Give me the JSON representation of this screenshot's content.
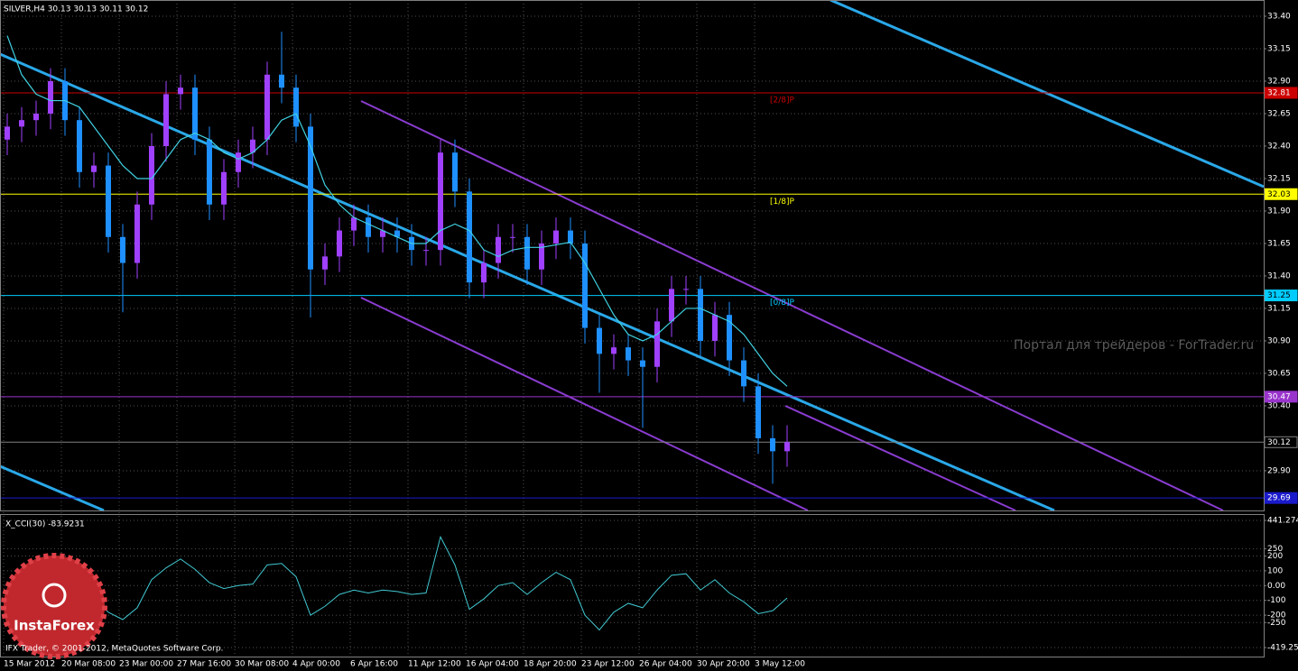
{
  "chart_data": [
    {
      "type": "candlestick",
      "title": "SILVER,H4 30.13 30.13 30.11 30.12",
      "up_color": "#a040ff",
      "down_color": "#1e90ff",
      "grid": true,
      "ylim": [
        29.594,
        33.525
      ],
      "yticks": [
        {
          "value": 33.4,
          "label": "33.40"
        },
        {
          "value": 33.15,
          "label": "33.15"
        },
        {
          "value": 32.9,
          "label": "32.90"
        },
        {
          "value": 32.65,
          "label": "32.65"
        },
        {
          "value": 32.4,
          "label": "32.40"
        },
        {
          "value": 32.15,
          "label": "32.15"
        },
        {
          "value": 31.9,
          "label": "31.90"
        },
        {
          "value": 31.65,
          "label": "31.65"
        },
        {
          "value": 31.4,
          "label": "31.40"
        },
        {
          "value": 31.15,
          "label": "31.15"
        },
        {
          "value": 30.9,
          "label": "30.90"
        },
        {
          "value": 30.65,
          "label": "30.65"
        },
        {
          "value": 30.4,
          "label": "30.40"
        },
        {
          "value": 29.9,
          "label": "29.90"
        }
      ],
      "xlabels": [
        "15 Mar 2012",
        "20 Mar 08:00",
        "23 Mar 00:00",
        "27 Mar 16:00",
        "30 Mar 08:00",
        "4 Apr 00:00",
        "6 Apr 16:00",
        "11 Apr 12:00",
        "16 Apr 04:00",
        "18 Apr 20:00",
        "23 Apr 12:00",
        "26 Apr 04:00",
        "30 Apr 20:00",
        "3 May 12:00"
      ],
      "candles": {
        "open": [
          32.45,
          32.55,
          32.6,
          32.65,
          32.9,
          32.6,
          32.2,
          32.25,
          31.7,
          31.5,
          31.95,
          32.4,
          32.8,
          32.85,
          32.45,
          31.95,
          32.2,
          32.35,
          32.45,
          32.95,
          32.85,
          32.55,
          31.45,
          31.55,
          31.75,
          31.85,
          31.7,
          31.75,
          31.7,
          31.6,
          31.6,
          32.35,
          32.05,
          31.35,
          31.5,
          31.7,
          31.7,
          31.45,
          31.65,
          31.75,
          31.65,
          31.0,
          30.8,
          30.85,
          30.75,
          30.7,
          31.05,
          31.3,
          31.3,
          30.9,
          31.1,
          30.75,
          30.55,
          30.15,
          30.05
        ],
        "high": [
          32.65,
          32.7,
          32.75,
          33.0,
          33.0,
          32.7,
          32.35,
          32.35,
          31.8,
          32.05,
          32.5,
          32.9,
          32.95,
          32.95,
          32.55,
          32.3,
          32.45,
          32.55,
          33.05,
          33.28,
          32.95,
          32.65,
          31.65,
          31.85,
          31.95,
          31.95,
          31.85,
          31.85,
          31.8,
          31.7,
          32.45,
          32.45,
          32.15,
          31.6,
          31.8,
          31.8,
          31.8,
          31.75,
          31.85,
          31.85,
          31.75,
          31.1,
          30.95,
          30.95,
          30.85,
          31.15,
          31.4,
          31.4,
          31.4,
          31.2,
          31.2,
          30.85,
          30.65,
          30.25,
          30.25
        ],
        "low": [
          32.33,
          32.43,
          32.48,
          32.53,
          32.48,
          32.08,
          32.08,
          31.58,
          31.12,
          31.38,
          31.83,
          32.28,
          32.68,
          32.33,
          31.83,
          31.83,
          32.08,
          32.23,
          32.33,
          32.73,
          32.43,
          31.08,
          31.33,
          31.43,
          31.63,
          31.58,
          31.58,
          31.58,
          31.48,
          31.48,
          31.48,
          31.93,
          31.23,
          31.23,
          31.38,
          31.58,
          31.33,
          31.33,
          31.53,
          31.53,
          30.88,
          30.5,
          30.68,
          30.63,
          30.23,
          30.58,
          30.93,
          31.18,
          30.78,
          30.78,
          30.63,
          30.43,
          30.03,
          29.8,
          29.93
        ],
        "close": [
          32.55,
          32.6,
          32.65,
          32.9,
          32.6,
          32.2,
          32.25,
          31.7,
          31.5,
          31.95,
          32.4,
          32.8,
          32.85,
          32.45,
          31.95,
          32.2,
          32.35,
          32.45,
          32.95,
          32.85,
          32.55,
          31.45,
          31.55,
          31.75,
          31.85,
          31.7,
          31.75,
          31.7,
          31.6,
          31.6,
          32.35,
          32.05,
          31.35,
          31.5,
          31.7,
          31.7,
          31.45,
          31.65,
          31.75,
          31.65,
          31.0,
          30.8,
          30.85,
          30.75,
          30.7,
          31.05,
          31.3,
          31.3,
          30.9,
          31.1,
          30.75,
          30.55,
          30.15,
          30.05,
          30.12
        ]
      },
      "ma": {
        "color": "#40d0e0",
        "values": [
          33.25,
          32.95,
          32.8,
          32.75,
          32.75,
          32.7,
          32.55,
          32.4,
          32.25,
          32.15,
          32.15,
          32.3,
          32.45,
          32.5,
          32.45,
          32.35,
          32.3,
          32.35,
          32.45,
          32.6,
          32.65,
          32.4,
          32.1,
          31.95,
          31.85,
          31.8,
          31.75,
          31.7,
          31.65,
          31.65,
          31.75,
          31.8,
          31.75,
          31.6,
          31.55,
          31.6,
          31.62,
          31.62,
          31.64,
          31.66,
          31.5,
          31.3,
          31.1,
          30.95,
          30.9,
          30.95,
          31.05,
          31.15,
          31.15,
          31.1,
          31.05,
          30.95,
          30.8,
          30.65,
          30.55
        ]
      },
      "levels": [
        {
          "value": 32.81,
          "color": "#cc0000",
          "text_color": "#ffffff",
          "tag": "[2/8]P"
        },
        {
          "value": 32.03,
          "color": "#ffff00",
          "text_color": "#000000",
          "tag": "[1/8]P"
        },
        {
          "value": 31.25,
          "color": "#00ccff",
          "text_color": "#000000",
          "tag": "[0/8]P"
        },
        {
          "value": 30.47,
          "color": "#9933cc",
          "text_color": "#ffffff"
        },
        {
          "value": 30.12,
          "color": "#808080",
          "text_color": "#ffffff"
        },
        {
          "value": 29.69,
          "color": "#1a1acc",
          "text_color": "#ffffff"
        }
      ]
    },
    {
      "type": "line",
      "title": "X_CCI(30) -83.9231",
      "color": "#40c8d0",
      "grid": true,
      "ylim": [
        -419.254,
        441.274
      ],
      "yticks": [
        441.274,
        250,
        200,
        100,
        {
          "value": 0,
          "label": "0.00"
        },
        -100,
        -200,
        -250,
        -419.254
      ],
      "values": [
        -20,
        10,
        40,
        80,
        60,
        -60,
        -80,
        -180,
        -230,
        -150,
        40,
        120,
        180,
        110,
        20,
        -20,
        0,
        10,
        140,
        150,
        60,
        -200,
        -140,
        -60,
        -30,
        -50,
        -30,
        -40,
        -60,
        -50,
        330,
        140,
        -160,
        -90,
        0,
        20,
        -60,
        20,
        90,
        40,
        -200,
        -300,
        -180,
        -120,
        -150,
        -30,
        70,
        80,
        -30,
        40,
        -50,
        -110,
        -190,
        -170,
        -84
      ]
    }
  ],
  "watermark": "Портал для трейдеров - ForTrader.ru",
  "logo": "InstaForex",
  "footer": "IFX Trader, © 2001-2012, MetaQuotes Software Corp."
}
